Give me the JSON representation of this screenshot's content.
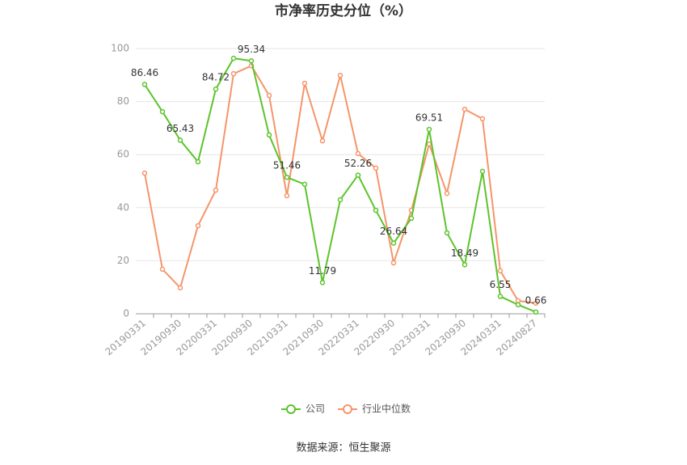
{
  "chart_data": {
    "type": "line",
    "title": "市净率历史分位（%）",
    "source": "数据来源：恒生聚源",
    "categories": [
      "20190331",
      null,
      "20190930",
      null,
      "20200331",
      null,
      "20200930",
      null,
      "20210331",
      null,
      "20210930",
      null,
      "20220331",
      null,
      "20220930",
      null,
      "20230331",
      null,
      "20230930",
      null,
      "20240331",
      null,
      "20240827"
    ],
    "series": [
      {
        "name": "公司",
        "color": "#5cc42b",
        "values": [
          86.46,
          76.2,
          65.43,
          57.3,
          84.72,
          96.3,
          95.34,
          67.4,
          51.46,
          48.8,
          11.79,
          43,
          52.26,
          39,
          26.64,
          36,
          69.51,
          30.5,
          18.49,
          53.7,
          6.55,
          3.4,
          0.66
        ]
      },
      {
        "name": "行业中位数",
        "color": "#f5956a",
        "values": [
          53,
          16.8,
          9.8,
          33.2,
          46.6,
          90.5,
          93.5,
          82.3,
          44.5,
          86.9,
          65.2,
          89.9,
          60.4,
          54.9,
          19.2,
          39,
          64,
          45.4,
          77.1,
          73.5,
          16.2,
          4.9,
          4
        ]
      }
    ],
    "ylim": [
      0,
      100
    ],
    "yticks": [
      0,
      20,
      40,
      60,
      80,
      100
    ],
    "grid": true
  }
}
